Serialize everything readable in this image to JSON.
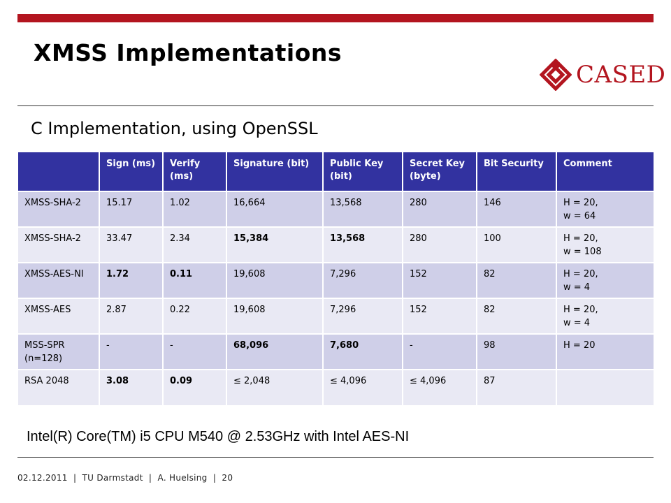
{
  "slide": {
    "title": "XMSS Implementations",
    "subtitle": "C Implementation, using OpenSSL",
    "logo_text": "CASED",
    "note": "Intel(R) Core(TM) i5 CPU M540 @ 2.53GHz with Intel  AES-NI",
    "accent_color": "#b3151f",
    "header_color": "#3232a0"
  },
  "table": {
    "headers": [
      "",
      "Sign (ms)",
      "Verify (ms)",
      "Signature (bit)",
      "Public Key (bit)",
      "Secret Key (byte)",
      "Bit Security",
      "Comment"
    ],
    "rows": [
      [
        "XMSS-SHA-2",
        "15.17",
        "1.02",
        "16,664",
        "13,568",
        "280",
        "146",
        "H = 20,\nw = 64"
      ],
      [
        "XMSS-SHA-2",
        "33.47",
        "2.34",
        "15,384",
        "13,568",
        "280",
        "100",
        "H = 20,\nw = 108"
      ],
      [
        "XMSS-AES-NI",
        "1.72",
        "0.11",
        "19,608",
        "7,296",
        "152",
        "82",
        "H = 20,\nw = 4"
      ],
      [
        "XMSS-AES",
        "2.87",
        "0.22",
        "19,608",
        "7,296",
        "152",
        "82",
        "H = 20,\nw = 4"
      ],
      [
        "MSS-SPR (n=128)",
        "-",
        "-",
        "68,096",
        "7,680",
        "-",
        "98",
        "H = 20"
      ],
      [
        "RSA 2048",
        "3.08",
        "0.09",
        "≤ 2,048",
        "≤ 4,096",
        "≤ 4,096",
        "87",
        ""
      ]
    ],
    "bold_cells": [
      [
        1,
        3
      ],
      [
        1,
        4
      ],
      [
        2,
        1
      ],
      [
        2,
        2
      ],
      [
        4,
        3
      ],
      [
        4,
        4
      ],
      [
        5,
        1
      ],
      [
        5,
        2
      ]
    ]
  },
  "footer": {
    "date": "02.12.2011",
    "org": "TU Darmstadt",
    "author": "A. Huelsing",
    "page": "20"
  }
}
